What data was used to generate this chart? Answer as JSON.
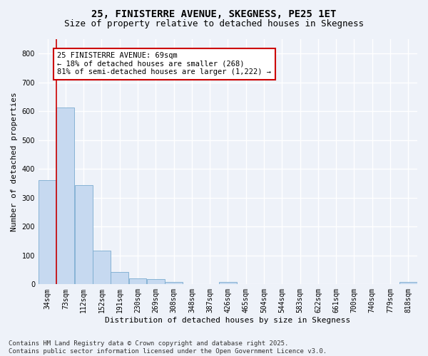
{
  "title": "25, FINISTERRE AVENUE, SKEGNESS, PE25 1ET",
  "subtitle": "Size of property relative to detached houses in Skegness",
  "xlabel": "Distribution of detached houses by size in Skegness",
  "ylabel": "Number of detached properties",
  "footer_line1": "Contains HM Land Registry data © Crown copyright and database right 2025.",
  "footer_line2": "Contains public sector information licensed under the Open Government Licence v3.0.",
  "categories": [
    "34sqm",
    "73sqm",
    "112sqm",
    "152sqm",
    "191sqm",
    "230sqm",
    "269sqm",
    "308sqm",
    "348sqm",
    "387sqm",
    "426sqm",
    "465sqm",
    "504sqm",
    "544sqm",
    "583sqm",
    "622sqm",
    "661sqm",
    "700sqm",
    "740sqm",
    "779sqm",
    "818sqm"
  ],
  "values": [
    360,
    612,
    345,
    117,
    42,
    20,
    17,
    9,
    0,
    0,
    8,
    0,
    0,
    0,
    0,
    0,
    0,
    0,
    0,
    0,
    8
  ],
  "bar_color": "#c6d9f0",
  "bar_edge_color": "#7aabcf",
  "vline_x_index": 0.5,
  "vline_color": "#cc0000",
  "annotation_line1": "25 FINISTERRE AVENUE: 69sqm",
  "annotation_line2": "← 18% of detached houses are smaller (268)",
  "annotation_line3": "81% of semi-detached houses are larger (1,222) →",
  "annotation_box_color": "#ffffff",
  "annotation_box_edge_color": "#cc0000",
  "ylim": [
    0,
    850
  ],
  "yticks": [
    0,
    100,
    200,
    300,
    400,
    500,
    600,
    700,
    800
  ],
  "background_color": "#eef2f9",
  "grid_color": "#ffffff",
  "title_fontsize": 10,
  "subtitle_fontsize": 9,
  "axis_label_fontsize": 8,
  "tick_fontsize": 7,
  "footer_fontsize": 6.5,
  "annotation_fontsize": 7.5
}
